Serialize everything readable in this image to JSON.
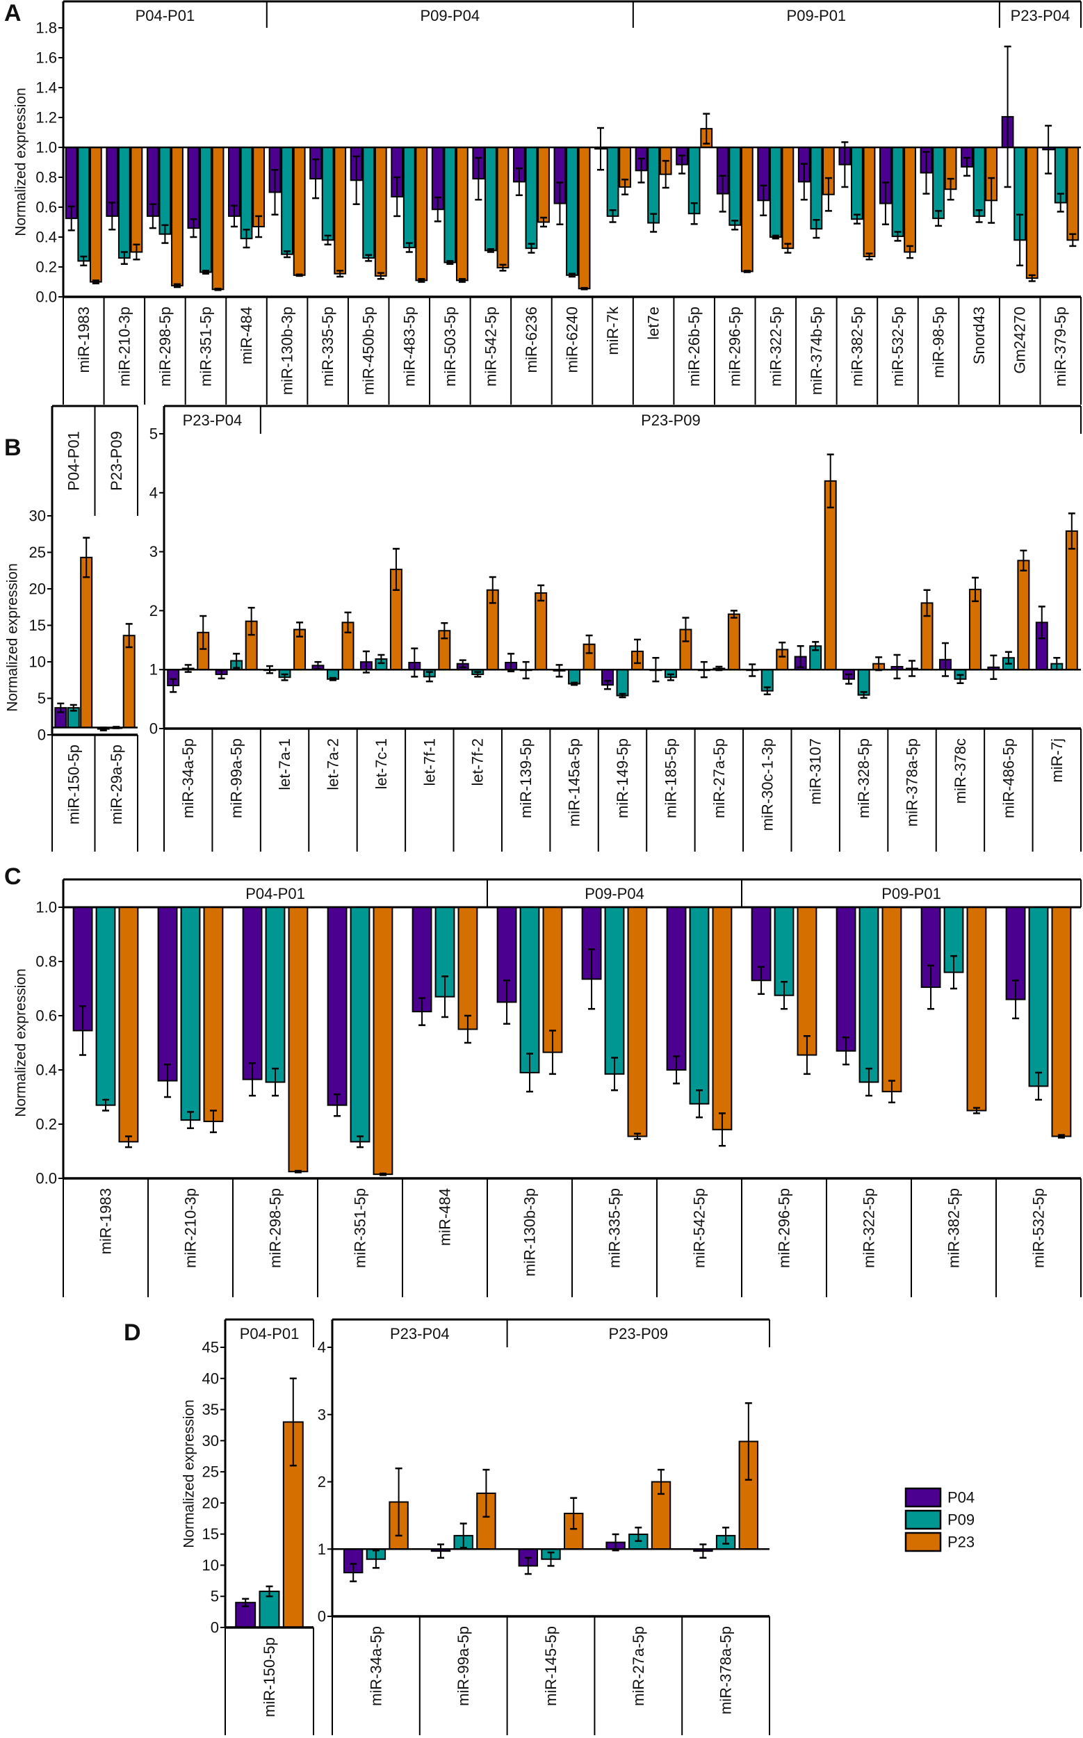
{
  "colors": {
    "P04": "#4b0090",
    "P09": "#009691",
    "P23": "#d46f00"
  },
  "legend": [
    "P04",
    "P09",
    "P23"
  ],
  "chart_data": [
    {
      "id": "A",
      "type": "bar",
      "panel_letter": "A",
      "ylabel": "Normalized expression",
      "ylim": [
        0,
        1.8
      ],
      "baseline": 1,
      "yticks": [
        "0.0",
        "0.2",
        "0.4",
        "0.6",
        "0.8",
        "1.0",
        "1.2",
        "1.4",
        "1.6",
        "1.8"
      ],
      "groups": [
        {
          "label": "P04-P01",
          "n": 5
        },
        {
          "label": "P09-P04",
          "n": 9
        },
        {
          "label": "P09-P01",
          "n": 9
        },
        {
          "label": "P23-P04",
          "n": 2
        }
      ],
      "categories": [
        "miR-1983",
        "miR-210-3p",
        "miR-298-5p",
        "miR-351-5p",
        "miR-484",
        "miR-130b-3p",
        "miR-335-5p",
        "miR-450b-5p",
        "miR-483-5p",
        "miR-503-5p",
        "miR-542-5p",
        "miR-6236",
        "miR-6240",
        "miR-7k",
        "let7e",
        "miR-26b-5p",
        "miR-296-5p",
        "miR-322-5p",
        "miR-374b-5p",
        "miR-382-5p",
        "miR-532-5p",
        "miR-98-5p",
        "Snord43",
        "Gm24270",
        "miR-379-5p"
      ],
      "series": [
        {
          "name": "P04",
          "values": [
            0.525,
            0.54,
            0.54,
            0.46,
            0.54,
            0.7,
            0.79,
            0.78,
            0.67,
            0.585,
            0.79,
            0.77,
            0.625,
            0.99,
            0.845,
            0.885,
            0.69,
            0.645,
            0.77,
            0.885,
            0.625,
            0.83,
            0.87,
            1.205,
            0.985
          ],
          "errors": [
            0.08,
            0.09,
            0.08,
            0.06,
            0.07,
            0.15,
            0.13,
            0.16,
            0.13,
            0.08,
            0.14,
            0.09,
            0.14,
            0.14,
            0.08,
            0.06,
            0.12,
            0.1,
            0.12,
            0.15,
            0.14,
            0.14,
            0.06,
            0.47,
            0.16
          ]
        },
        {
          "name": "P09",
          "values": [
            0.24,
            0.26,
            0.42,
            0.165,
            0.39,
            0.285,
            0.38,
            0.26,
            0.33,
            0.23,
            0.31,
            0.325,
            0.145,
            0.54,
            0.495,
            0.557,
            0.48,
            0.4,
            0.455,
            0.52,
            0.405,
            0.525,
            0.54,
            0.38,
            0.63
          ],
          "errors": [
            0.03,
            0.04,
            0.06,
            0.01,
            0.06,
            0.02,
            0.03,
            0.02,
            0.03,
            0.01,
            0.01,
            0.03,
            0.01,
            0.04,
            0.06,
            0.07,
            0.03,
            0.01,
            0.06,
            0.03,
            0.03,
            0.05,
            0.04,
            0.17,
            0.06
          ]
        },
        {
          "name": "P23",
          "values": [
            0.1,
            0.3,
            0.075,
            0.05,
            0.47,
            0.145,
            0.155,
            0.14,
            0.11,
            0.11,
            0.195,
            0.5,
            0.055,
            0.735,
            0.82,
            1.125,
            0.17,
            0.325,
            0.685,
            0.27,
            0.3,
            0.72,
            0.645,
            0.125,
            0.38
          ],
          "errors": [
            0.01,
            0.05,
            0.01,
            0.005,
            0.07,
            0.005,
            0.02,
            0.02,
            0.01,
            0.01,
            0.02,
            0.03,
            0.005,
            0.05,
            0.09,
            0.1,
            0.005,
            0.03,
            0.11,
            0.02,
            0.04,
            0.07,
            0.15,
            0.02,
            0.04
          ]
        }
      ]
    },
    {
      "id": "B-left",
      "type": "bar",
      "panel_letter": "B",
      "ylabel": "Normalized expression",
      "ylim": [
        0,
        30
      ],
      "baseline": 1,
      "yticks": [
        "0",
        "5",
        "10",
        "15",
        "20",
        "25",
        "30"
      ],
      "groups": [
        {
          "label": "P04-P01",
          "n": 1
        },
        {
          "label": "P23-P09",
          "n": 1
        }
      ],
      "categories": [
        "miR-150-5p",
        "miR-29a-5p"
      ],
      "series": [
        {
          "name": "P04",
          "values": [
            3.7,
            0.8
          ],
          "errors": [
            0.6,
            0.2
          ]
        },
        {
          "name": "P09",
          "values": [
            3.7,
            1.0
          ],
          "errors": [
            0.4,
            0.1
          ]
        },
        {
          "name": "P23",
          "values": [
            24.3,
            13.6
          ],
          "errors": [
            2.7,
            1.6
          ]
        }
      ]
    },
    {
      "id": "B-right",
      "type": "bar",
      "ylim": [
        0,
        5
      ],
      "baseline": 1,
      "yticks": [
        "0",
        "1",
        "2",
        "3",
        "4",
        "5"
      ],
      "groups": [
        {
          "label": "P23-P04",
          "n": 2
        },
        {
          "label": "P23-P09",
          "n": 17
        }
      ],
      "categories": [
        "miR-34a-5p",
        "miR-99a-5p",
        "let-7a-1",
        "let-7a-2",
        "let-7c-1",
        "let-7f-1",
        "let-7f-2",
        "miR-139-5p",
        "miR-145a-5p",
        "miR-149-5p",
        "miR-185-5p",
        "miR-27a-5p",
        "miR-30c-1-3p",
        "miR-3107",
        "miR-328-5p",
        "miR-378a-5p",
        "miR-378c",
        "miR-486-5p",
        "miR-7j"
      ],
      "series": [
        {
          "name": "P04",
          "values": [
            0.73,
            0.92,
            1.0,
            1.07,
            1.13,
            1.12,
            1.1,
            1.12,
            0.98,
            0.74,
            1.0,
            1.0,
            0.99,
            1.22,
            0.84,
            1.05,
            1.17,
            1.04,
            1.8
          ],
          "errors": [
            0.11,
            0.07,
            0.06,
            0.06,
            0.18,
            0.24,
            0.06,
            0.15,
            0.1,
            0.07,
            0.2,
            0.13,
            0.1,
            0.18,
            0.08,
            0.2,
            0.28,
            0.2,
            0.27
          ]
        },
        {
          "name": "P09",
          "values": [
            1.02,
            1.15,
            0.87,
            0.84,
            1.18,
            0.88,
            0.92,
            0.99,
            0.76,
            0.56,
            0.87,
            1.02,
            0.64,
            1.4,
            0.57,
            1.02,
            0.84,
            1.2,
            1.1
          ],
          "errors": [
            0.06,
            0.12,
            0.05,
            0.02,
            0.07,
            0.08,
            0.04,
            0.14,
            0.02,
            0.03,
            0.05,
            0.03,
            0.06,
            0.07,
            0.05,
            0.13,
            0.07,
            0.1,
            0.1
          ]
        },
        {
          "name": "P23",
          "values": [
            1.63,
            1.82,
            1.68,
            1.8,
            2.7,
            1.66,
            2.35,
            2.3,
            1.43,
            1.31,
            1.68,
            1.94,
            1.34,
            4.2,
            1.1,
            2.13,
            2.36,
            2.85,
            3.35
          ],
          "errors": [
            0.28,
            0.23,
            0.12,
            0.17,
            0.35,
            0.13,
            0.22,
            0.13,
            0.15,
            0.2,
            0.2,
            0.06,
            0.12,
            0.45,
            0.11,
            0.22,
            0.2,
            0.17,
            0.3
          ]
        }
      ]
    },
    {
      "id": "C",
      "type": "bar",
      "panel_letter": "C",
      "ylabel": "Normalized expression",
      "ylim": [
        0,
        1
      ],
      "baseline": 1,
      "yticks": [
        "0.0",
        "0.2",
        "0.4",
        "0.6",
        "0.8",
        "1.0"
      ],
      "groups": [
        {
          "label": "P04-P01",
          "n": 5
        },
        {
          "label": "P09-P04",
          "n": 3
        },
        {
          "label": "P09-P01",
          "n": 4
        }
      ],
      "categories": [
        "miR-1983",
        "miR-210-3p",
        "miR-298-5p",
        "miR-351-5p",
        "miR-484",
        "miR-130b-3p",
        "miR-335-5p",
        "miR-542-5p",
        "miR-296-5p",
        "miR-322-5p",
        "miR-382-5p",
        "miR-532-5p"
      ],
      "series": [
        {
          "name": "P04",
          "values": [
            0.545,
            0.36,
            0.365,
            0.27,
            0.615,
            0.65,
            0.735,
            0.4,
            0.73,
            0.47,
            0.705,
            0.66
          ],
          "errors": [
            0.09,
            0.06,
            0.06,
            0.04,
            0.05,
            0.08,
            0.11,
            0.05,
            0.05,
            0.05,
            0.08,
            0.07
          ]
        },
        {
          "name": "P09",
          "values": [
            0.27,
            0.215,
            0.355,
            0.135,
            0.67,
            0.39,
            0.385,
            0.275,
            0.675,
            0.355,
            0.76,
            0.34
          ],
          "errors": [
            0.02,
            0.03,
            0.05,
            0.02,
            0.075,
            0.07,
            0.06,
            0.05,
            0.05,
            0.05,
            0.06,
            0.05
          ]
        },
        {
          "name": "P23",
          "values": [
            0.135,
            0.21,
            0.025,
            0.015,
            0.55,
            0.465,
            0.155,
            0.18,
            0.455,
            0.32,
            0.25,
            0.155
          ],
          "errors": [
            0.02,
            0.04,
            0.003,
            0.003,
            0.05,
            0.08,
            0.01,
            0.06,
            0.07,
            0.04,
            0.01,
            0.005
          ]
        }
      ]
    },
    {
      "id": "D-left",
      "type": "bar",
      "panel_letter": "D",
      "ylabel": "Normalized expression",
      "ylim": [
        0,
        45
      ],
      "baseline": 0,
      "yticks": [
        "0",
        "5",
        "10",
        "15",
        "20",
        "25",
        "30",
        "35",
        "40",
        "45"
      ],
      "groups": [
        {
          "label": "P04-P01",
          "n": 1
        }
      ],
      "categories": [
        "miR-150-5p"
      ],
      "series": [
        {
          "name": "P04",
          "values": [
            4.0
          ],
          "errors": [
            0.6
          ]
        },
        {
          "name": "P09",
          "values": [
            5.8
          ],
          "errors": [
            0.8
          ]
        },
        {
          "name": "P23",
          "values": [
            33.0
          ],
          "errors": [
            7.0
          ]
        }
      ]
    },
    {
      "id": "D-right",
      "type": "bar",
      "ylim": [
        0,
        4
      ],
      "baseline": 1,
      "yticks": [
        "0",
        "1",
        "2",
        "3",
        "4"
      ],
      "groups": [
        {
          "label": "P23-P04",
          "n": 2
        },
        {
          "label": "P23-P09",
          "n": 3
        }
      ],
      "categories": [
        "miR-34a-5p",
        "miR-99a-5p",
        "miR-145-5p",
        "miR-27a-5p",
        "miR-378a-5p"
      ],
      "series": [
        {
          "name": "P04",
          "values": [
            0.65,
            0.97,
            0.75,
            1.1,
            0.97
          ],
          "errors": [
            0.13,
            0.1,
            0.12,
            0.12,
            0.1
          ]
        },
        {
          "name": "P09",
          "values": [
            0.85,
            1.2,
            0.85,
            1.22,
            1.2
          ],
          "errors": [
            0.13,
            0.18,
            0.1,
            0.1,
            0.12
          ]
        },
        {
          "name": "P23",
          "values": [
            1.7,
            1.83,
            1.53,
            2.0,
            2.6
          ],
          "errors": [
            0.5,
            0.35,
            0.23,
            0.18,
            0.57
          ]
        }
      ]
    }
  ]
}
